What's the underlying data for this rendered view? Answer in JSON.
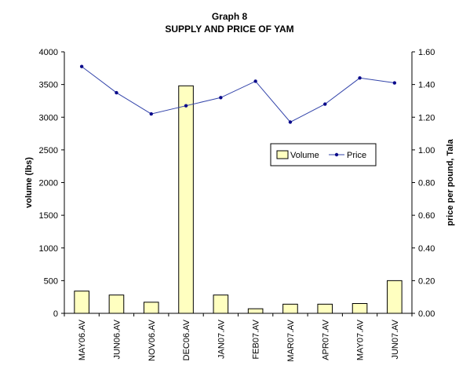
{
  "chart_data": {
    "type": "bar+line",
    "title": "Graph 8",
    "subtitle": "SUPPLY AND PRICE OF YAM",
    "categories": [
      "MAY06.AV",
      "JUN06.AV",
      "NOV06.AV",
      "DEC06.AV",
      "JAN07.AV",
      "FEB07.AV",
      "MAR07.AV",
      "APR07.AV",
      "MAY07.AV",
      "JUN07.AV"
    ],
    "series": [
      {
        "name": "Volume",
        "type": "bar",
        "axis": "left",
        "values": [
          340,
          280,
          170,
          3480,
          280,
          70,
          140,
          140,
          150,
          500
        ],
        "color": "#ffffc0"
      },
      {
        "name": "Price",
        "type": "line",
        "axis": "right",
        "values": [
          1.51,
          1.35,
          1.22,
          1.27,
          1.32,
          1.42,
          1.17,
          1.28,
          1.44,
          1.41
        ],
        "color": "#0a0a8a"
      }
    ],
    "ylabel": "volume (lbs)",
    "y2label": "price per pound, Tala",
    "ylim": [
      0,
      4000
    ],
    "y2lim": [
      0,
      1.6
    ],
    "yticks": [
      "0",
      "500",
      "1000",
      "1500",
      "2000",
      "2500",
      "3000",
      "3500",
      "4000"
    ],
    "y2ticks": [
      "0.00",
      "0.20",
      "0.40",
      "0.60",
      "0.80",
      "1.00",
      "1.20",
      "1.40",
      "1.60"
    ],
    "legend": {
      "position": "right",
      "entries": [
        "Volume",
        "Price"
      ]
    },
    "grid": false
  }
}
